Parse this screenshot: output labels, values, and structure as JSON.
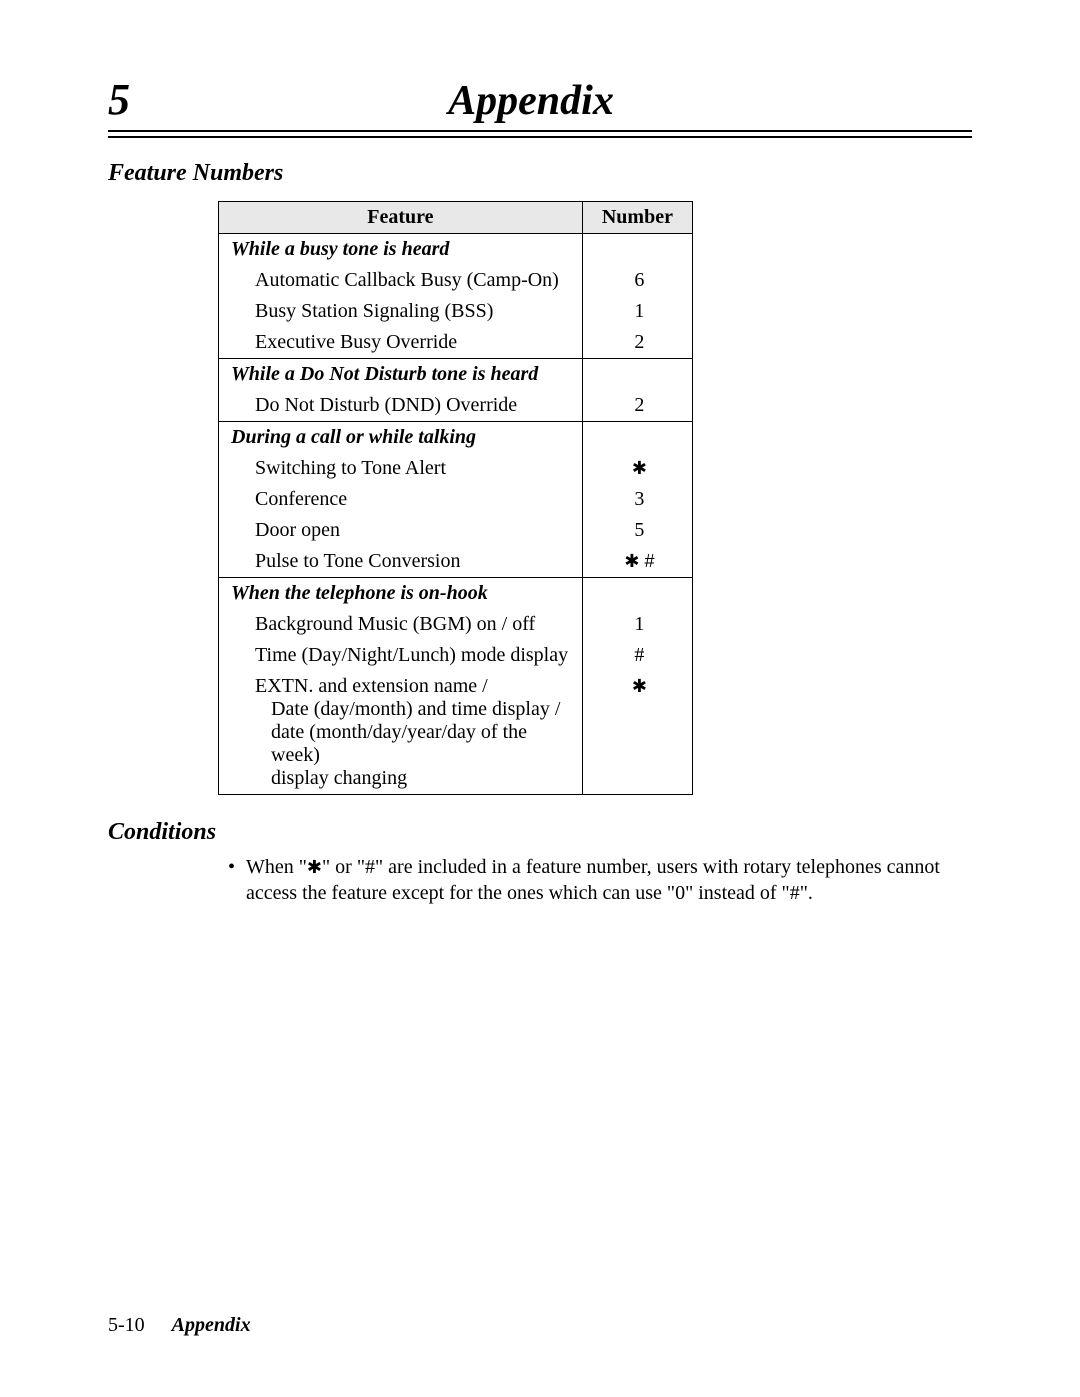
{
  "chapter_number": "5",
  "chapter_title": "Appendix",
  "section1_title": "Feature Numbers",
  "table": {
    "header_feature": "Feature",
    "header_number": "Number",
    "groups": [
      {
        "title": "While a busy tone is heard",
        "rows": [
          {
            "feature": "Automatic Callback Busy (Camp-On)",
            "number": "6"
          },
          {
            "feature": "Busy Station Signaling (BSS)",
            "number": "1"
          },
          {
            "feature": "Executive Busy Override",
            "number": "2"
          }
        ]
      },
      {
        "title": "While a Do Not Disturb tone is heard",
        "rows": [
          {
            "feature": "Do Not Disturb (DND) Override",
            "number": "2"
          }
        ]
      },
      {
        "title": "During a call or while talking",
        "rows": [
          {
            "feature": "Switching to Tone Alert",
            "number": "✱"
          },
          {
            "feature": "Conference",
            "number": "3"
          },
          {
            "feature": "Door open",
            "number": "5"
          },
          {
            "feature": "Pulse to Tone Conversion",
            "number": "✱ #"
          }
        ]
      },
      {
        "title": "When the telephone is on-hook",
        "rows": [
          {
            "feature": "Background Music (BGM) on / off",
            "number": "1"
          },
          {
            "feature": "Time (Day/Night/Lunch) mode display",
            "number": "#"
          },
          {
            "feature": "EXTN. and extension name /",
            "number": "✱",
            "sub": [
              "Date (day/month) and time display /",
              "date (month/day/year/day of the week)",
              "display changing"
            ]
          }
        ]
      }
    ]
  },
  "section2_title": "Conditions",
  "condition_text_1": "When \"",
  "condition_text_2": "\" or \"#\" are included in a feature number, users with rotary telephones cannot access the feature except for the ones which can use \"0\" instead of \"#\".",
  "star_glyph": "✱",
  "footer_page": "5-10",
  "footer_label": "Appendix",
  "colors": {
    "bg": "#ffffff",
    "text": "#000000",
    "header_bg": "#e8e8e8",
    "border": "#000000"
  }
}
